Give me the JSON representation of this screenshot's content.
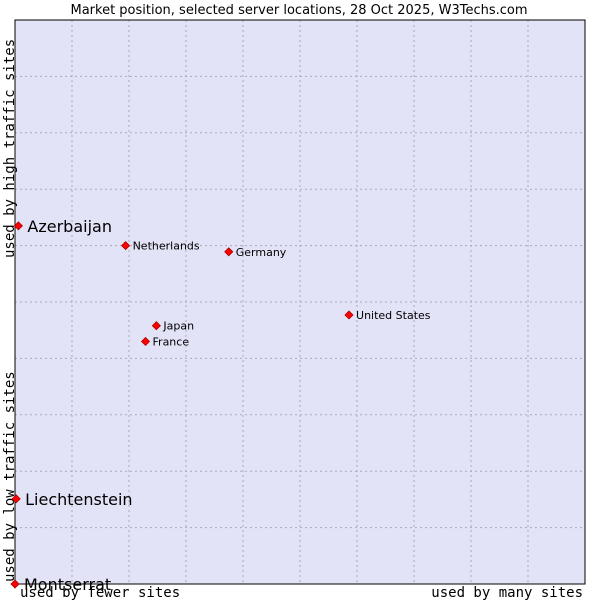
{
  "chart_data": {
    "type": "scatter",
    "title": "Market position, selected server locations, 28 Oct 2025, W3Techs.com",
    "xlabel_low": "used by fewer sites",
    "xlabel_high": "used by many sites",
    "ylabel_low": "used by low traffic sites",
    "ylabel_high": "used by high traffic sites",
    "xlim": [
      0,
      100
    ],
    "ylim": [
      0,
      100
    ],
    "grid": true,
    "colors": {
      "plot_bg": "#e3e3f8",
      "grid": "#a9a9bd",
      "point": "#ff0000",
      "point_stroke": "#aa0000"
    },
    "points": [
      {
        "name": "Azerbaijan",
        "x": 0.6,
        "y": 63.5,
        "emphasis": true
      },
      {
        "name": "Netherlands",
        "x": 19.4,
        "y": 60.0,
        "emphasis": false
      },
      {
        "name": "Germany",
        "x": 37.5,
        "y": 58.9,
        "emphasis": false
      },
      {
        "name": "United States",
        "x": 58.6,
        "y": 47.7,
        "emphasis": false
      },
      {
        "name": "Japan",
        "x": 24.8,
        "y": 45.8,
        "emphasis": false
      },
      {
        "name": "France",
        "x": 22.9,
        "y": 43.0,
        "emphasis": false
      },
      {
        "name": "Liechtenstein",
        "x": 0.2,
        "y": 15.1,
        "emphasis": true
      },
      {
        "name": "Montserrat",
        "x": 0.0,
        "y": 0.0,
        "emphasis": true
      }
    ]
  }
}
